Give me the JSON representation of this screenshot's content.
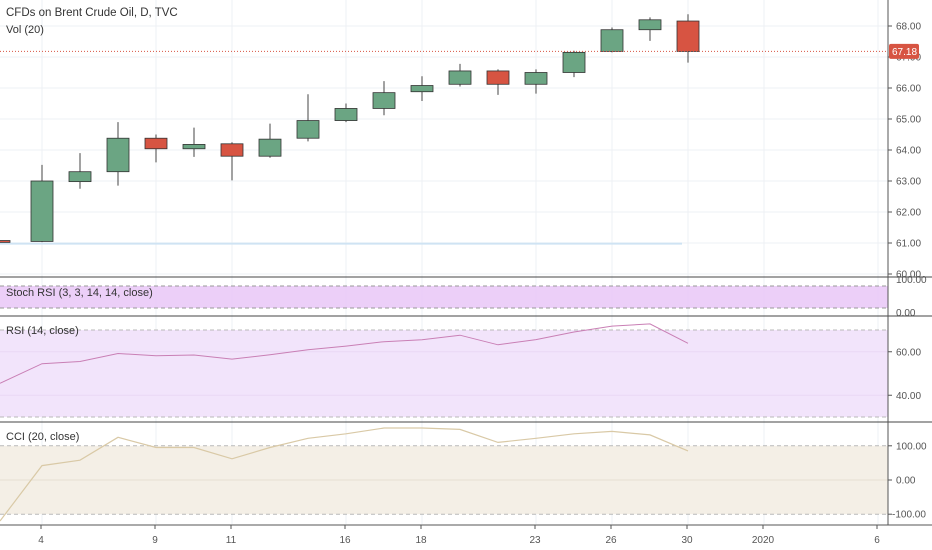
{
  "legend": {
    "main": "CFDs on Brent Crude Oil, D, TVC",
    "volume": "Vol (20)",
    "stoch_rsi": "Stoch RSI (3, 3, 14, 14, close)",
    "rsi": "RSI (14, close)",
    "cci": "CCI (20, close)"
  },
  "colors": {
    "up": "#6ba583",
    "down": "#d75442",
    "rsi_line": "#c97fb5",
    "cci_line": "#d9c9a6",
    "rsi_band": "#f2e4fb",
    "cci_band": "#f4efe6",
    "price_marker": "#d75442"
  },
  "chart_data": [
    {
      "type": "candlestick",
      "title": "CFDs on Brent Crude Oil, D, TVC",
      "x_ticks": [
        "4",
        "9",
        "11",
        "16",
        "18",
        "23",
        "26",
        "30",
        "2020",
        "6"
      ],
      "y_ticks": [
        "60.00",
        "61.00",
        "62.00",
        "63.00",
        "64.00",
        "65.00",
        "66.00",
        "67.00",
        "68.00"
      ],
      "ylim": [
        60.0,
        68.8
      ],
      "last_price_label": "67.18",
      "last_price": 67.18,
      "candles": [
        {
          "date": "Dec 3",
          "open": 61.08,
          "high": 61.12,
          "low": 60.98,
          "close": 61.02
        },
        {
          "date": "Dec 4",
          "open": 61.05,
          "high": 63.52,
          "low": 61.03,
          "close": 63.0
        },
        {
          "date": "Dec 5",
          "open": 62.98,
          "high": 63.9,
          "low": 62.75,
          "close": 63.3
        },
        {
          "date": "Dec 6",
          "open": 63.3,
          "high": 64.9,
          "low": 62.85,
          "close": 64.38
        },
        {
          "date": "Dec 9",
          "open": 64.38,
          "high": 64.5,
          "low": 63.6,
          "close": 64.04
        },
        {
          "date": "Dec 10",
          "open": 64.04,
          "high": 64.72,
          "low": 63.78,
          "close": 64.18
        },
        {
          "date": "Dec 11",
          "open": 64.2,
          "high": 64.25,
          "low": 63.02,
          "close": 63.8
        },
        {
          "date": "Dec 12",
          "open": 63.8,
          "high": 64.85,
          "low": 63.75,
          "close": 64.35
        },
        {
          "date": "Dec 13",
          "open": 64.38,
          "high": 65.8,
          "low": 64.28,
          "close": 64.95
        },
        {
          "date": "Dec 16",
          "open": 64.95,
          "high": 65.5,
          "low": 64.9,
          "close": 65.34
        },
        {
          "date": "Dec 17",
          "open": 65.34,
          "high": 66.22,
          "low": 65.12,
          "close": 65.85
        },
        {
          "date": "Dec 18",
          "open": 65.88,
          "high": 66.38,
          "low": 65.58,
          "close": 66.08
        },
        {
          "date": "Dec 19",
          "open": 66.12,
          "high": 66.78,
          "low": 66.05,
          "close": 66.55
        },
        {
          "date": "Dec 20",
          "open": 66.55,
          "high": 66.6,
          "low": 65.78,
          "close": 66.12
        },
        {
          "date": "Dec 23",
          "open": 66.12,
          "high": 66.6,
          "low": 65.82,
          "close": 66.5
        },
        {
          "date": "Dec 24",
          "open": 66.5,
          "high": 67.2,
          "low": 66.35,
          "close": 67.15
        },
        {
          "date": "Dec 26",
          "open": 67.18,
          "high": 67.95,
          "low": 67.15,
          "close": 67.88
        },
        {
          "date": "Dec 27",
          "open": 67.88,
          "high": 68.28,
          "low": 67.52,
          "close": 68.2
        },
        {
          "date": "Dec 30",
          "open": 68.16,
          "high": 68.38,
          "low": 66.82,
          "close": 67.18
        }
      ]
    },
    {
      "type": "line",
      "title": "Stoch RSI (3, 3, 14, 14, close)",
      "y_ticks": [
        "100.00",
        "0.00"
      ]
    },
    {
      "type": "line",
      "title": "RSI (14, close)",
      "y_ticks": [
        "60.00",
        "40.00"
      ],
      "ylim": [
        27.0,
        75.0
      ],
      "bands": [
        30,
        70
      ],
      "values": [
        45.5,
        54.5,
        55.5,
        59.2,
        58.2,
        58.5,
        56.6,
        58.6,
        60.9,
        62.6,
        64.6,
        65.5,
        67.6,
        63.2,
        65.6,
        69.1,
        71.8,
        72.8,
        63.9
      ]
    },
    {
      "type": "line",
      "title": "CCI (20, close)",
      "y_ticks": [
        "100.00",
        "0.00",
        "-100.00"
      ],
      "ylim": [
        -125,
        160
      ],
      "bands": [
        -100,
        100
      ],
      "values": [
        -120,
        42,
        58,
        125,
        95,
        95,
        62,
        95,
        122,
        135,
        152,
        152,
        148,
        110,
        122,
        135,
        142,
        132,
        85
      ]
    }
  ]
}
